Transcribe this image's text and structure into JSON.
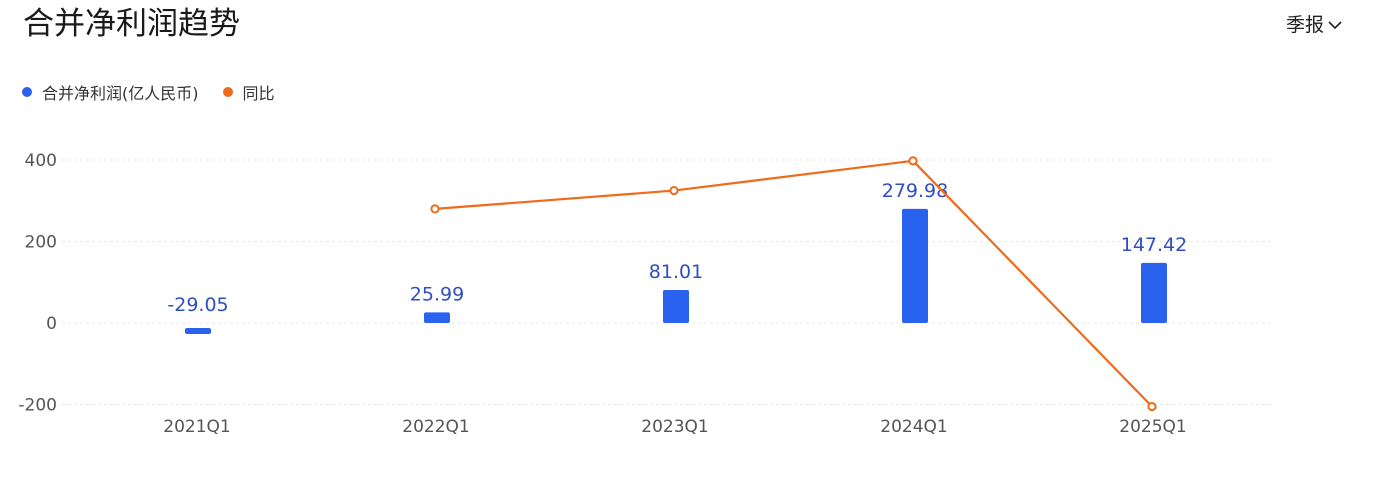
{
  "title": "合并净利润趋势",
  "period_select": {
    "label": "季报",
    "chevron_icon": "chevron-down-icon"
  },
  "legend": [
    {
      "label": "合并净利润(亿人民币)",
      "color": "#2a62f0"
    },
    {
      "label": "同比",
      "color": "#ef6a1b"
    }
  ],
  "chart_data": {
    "type": "bar",
    "categories": [
      "2021Q1",
      "2022Q1",
      "2023Q1",
      "2024Q1",
      "2025Q1"
    ],
    "series": [
      {
        "name": "合并净利润(亿人民币)",
        "type": "bar",
        "values": [
          -29.05,
          25.99,
          81.01,
          279.98,
          147.42
        ],
        "data_labels": [
          "-29.05",
          "25.99",
          "81.01",
          "279.98",
          "147.42"
        ],
        "color": "#2a62f0"
      },
      {
        "name": "同比",
        "type": "line",
        "values": [
          null,
          280,
          325,
          398,
          -205
        ],
        "color": "#ef6a1b"
      }
    ],
    "y_ticks": [
      400,
      200,
      0,
      -200
    ],
    "y_tick_labels": [
      "400",
      "200",
      "0",
      "-200"
    ],
    "ylim": [
      -200,
      400
    ],
    "grid": true,
    "legend_position": "top-left"
  }
}
